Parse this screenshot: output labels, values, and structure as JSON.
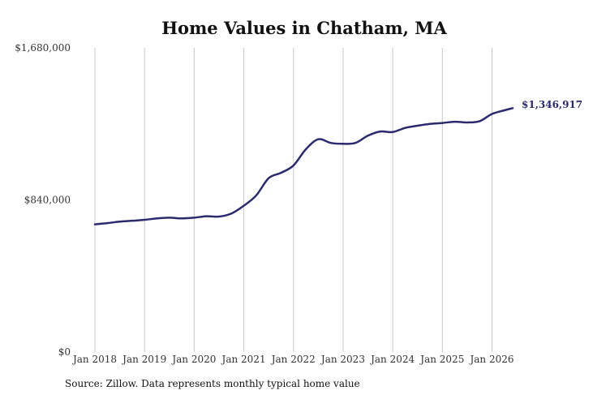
{
  "chart_data": {
    "type": "line",
    "title": "Home Values in Chatham, MA",
    "xlabel": "",
    "ylabel": "",
    "ylim": [
      0,
      1680000
    ],
    "yticks": [
      "$0",
      "$840,000",
      "$1,680,000"
    ],
    "yticks_values": [
      0,
      840000,
      1680000
    ],
    "xticks": [
      "Jan 2018",
      "Jan 2019",
      "Jan 2020",
      "Jan 2021",
      "Jan 2022",
      "Jan 2023",
      "Jan 2024",
      "Jan 2025",
      "Jan 2026"
    ],
    "xlim": [
      "2018-01",
      "2026-06"
    ],
    "grid": "vertical",
    "line_color": "#2b2a6e",
    "end_label": "$1,346,917",
    "series": [
      {
        "x": [
          "2018-01",
          "2018-04",
          "2018-07",
          "2018-10",
          "2019-01",
          "2019-04",
          "2019-07",
          "2019-10",
          "2020-01",
          "2020-04",
          "2020-07",
          "2020-10",
          "2021-01",
          "2021-04",
          "2021-07",
          "2021-10",
          "2022-01",
          "2022-04",
          "2022-07",
          "2022-10",
          "2023-01",
          "2023-04",
          "2023-07",
          "2023-10",
          "2024-01",
          "2024-04",
          "2024-07",
          "2024-10",
          "2025-01",
          "2025-04",
          "2025-07",
          "2025-10",
          "2026-01",
          "2026-04",
          "2026-06"
        ],
        "y": [
          705000,
          712000,
          720000,
          725000,
          730000,
          738000,
          742000,
          738000,
          742000,
          750000,
          748000,
          765000,
          808000,
          865000,
          960000,
          990000,
          1030000,
          1120000,
          1175000,
          1155000,
          1150000,
          1155000,
          1195000,
          1218000,
          1215000,
          1238000,
          1250000,
          1260000,
          1265000,
          1272000,
          1268000,
          1275000,
          1315000,
          1335000,
          1346917
        ]
      }
    ]
  },
  "footer": {
    "source": "Source: Zillow. Data represents monthly typical home value"
  }
}
